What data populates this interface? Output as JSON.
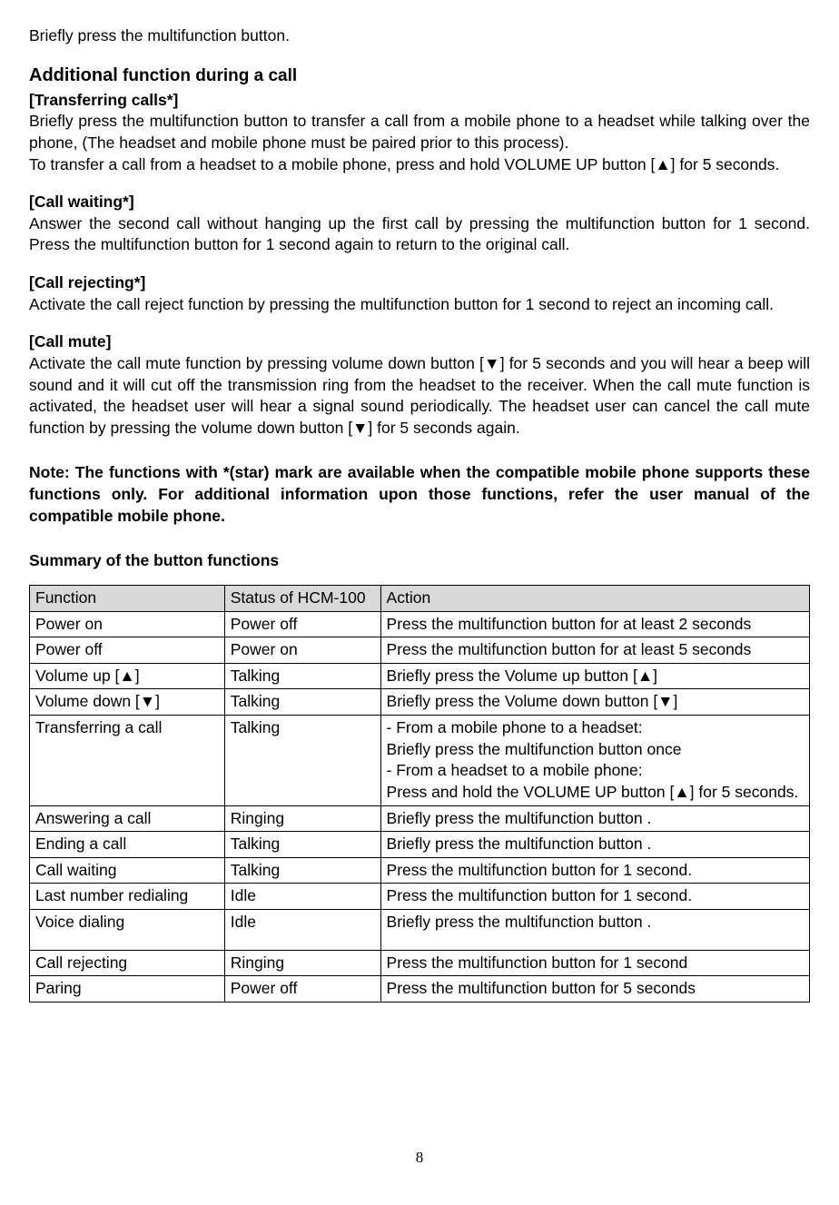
{
  "intro_line": "Briefly press the multifunction button.",
  "heading_additional_strong": "Additional",
  "heading_additional_rest": " function during a call",
  "transfer": {
    "title": "[Transferring calls*]",
    "p1": "Briefly press the multifunction button to transfer a call from a mobile phone to a headset while talking over the phone, (The headset and mobile phone must be paired prior to this process).",
    "p2": "To transfer a call from a headset to a mobile phone, press and hold VOLUME UP button [▲] for 5 seconds."
  },
  "waiting": {
    "title": "[Call waiting*]",
    "p1": "Answer the second call without hanging up the first call by pressing the multifunction button   for 1 second. Press the multifunction button for 1 second again to return to the original call."
  },
  "reject": {
    "title": "[Call rejecting*]",
    "p1": "Activate the call reject function by pressing the multifunction button for 1 second to reject an incoming call."
  },
  "mute": {
    "title": "[Call mute]",
    "p1": "Activate the call mute function by pressing volume down button [▼] for 5 seconds and you will hear a beep will sound and it will cut off the transmission ring from the headset to the receiver. When the call mute function is activated, the headset user will hear a signal sound periodically. The headset user can cancel the call mute function by pressing the volume down button [▼] for 5 seconds again."
  },
  "note": "Note: The functions with *(star) mark are available when the compatible mobile phone supports these functions only. For additional information upon those functions, refer the user manual of the compatible mobile phone.",
  "summary_heading": "Summary of the button functions",
  "table": {
    "headers": [
      "Function",
      "Status of HCM-100",
      "Action"
    ],
    "rows": [
      [
        "Power on",
        "Power off",
        "Press the multifunction button for at least 2 seconds"
      ],
      [
        "Power off",
        "Power on",
        "Press the multifunction button for at least 5 seconds"
      ],
      [
        "Volume up [▲]",
        "Talking",
        "Briefly press the Volume up button [▲]"
      ],
      [
        "Volume down [▼]",
        "Talking",
        "Briefly press the Volume down button [▼]"
      ],
      [
        "Transferring a call",
        "Talking",
        "- From a mobile phone to a headset:\nBriefly press the multifunction button once\n- From a headset to a mobile phone:\nPress and hold the VOLUME UP button [▲] for 5 seconds."
      ],
      [
        "Answering a call",
        "Ringing",
        "Briefly press the multifunction button ."
      ],
      [
        "Ending a call",
        "Talking",
        "Briefly press the multifunction button ."
      ],
      [
        "Call waiting",
        "Talking",
        "Press the multifunction button for 1 second."
      ],
      [
        "Last number redialing",
        "Idle",
        "Press the multifunction button for 1 second."
      ],
      [
        "Voice dialing",
        "Idle",
        "Briefly press the multifunction button ."
      ],
      [
        "Call rejecting",
        "Ringing",
        "Press the multifunction button for 1 second"
      ],
      [
        "Paring",
        "Power off",
        "Press the multifunction button for 5 seconds"
      ]
    ],
    "voice_row_index": 9
  },
  "page_number": "8"
}
